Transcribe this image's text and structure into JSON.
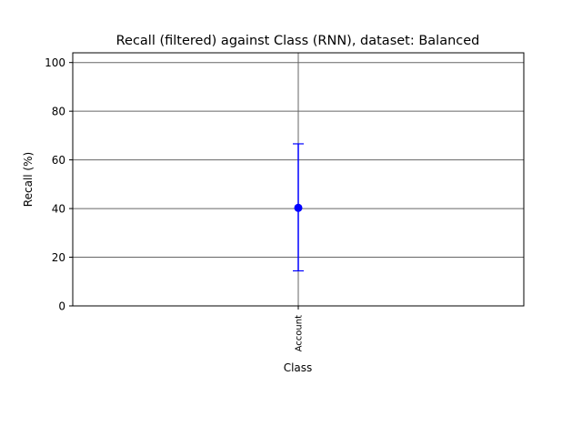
{
  "chart_data": {
    "type": "errorbar",
    "title": "Recall (filtered) against Class (RNN), dataset: Balanced",
    "xlabel": "Class",
    "ylabel": "Recall (%)",
    "categories": [
      "Account"
    ],
    "values": [
      40.3
    ],
    "error_lower": [
      14.4
    ],
    "error_upper": [
      66.6
    ],
    "ylim": [
      0,
      104
    ],
    "yticks": [
      0,
      20,
      40,
      60,
      80,
      100
    ],
    "grid": true,
    "color": "#0000ff",
    "grid_color": "#666666"
  }
}
